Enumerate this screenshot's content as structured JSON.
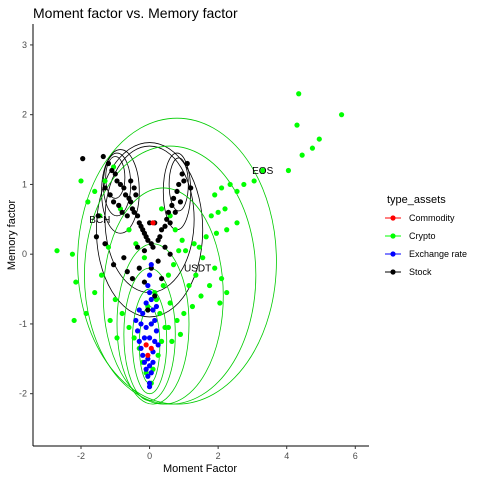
{
  "chart_data": {
    "type": "scatter",
    "title": "Moment factor vs. Memory factor",
    "xlabel": "Moment Factor",
    "ylabel": "Memory factor",
    "xlim": [
      -3.4,
      6.4
    ],
    "ylim": [
      -2.75,
      3.3
    ],
    "xticks": [
      -2,
      0,
      2,
      4,
      6
    ],
    "yticks": [
      -2,
      -1,
      0,
      1,
      2,
      3
    ],
    "grid": false,
    "legend": {
      "title": "type_assets",
      "position": "right",
      "entries": [
        "Commodity",
        "Crypto",
        "Exchange rate",
        "Stock"
      ]
    },
    "colors": {
      "Commodity": "#ff0000",
      "Crypto": "#00ff00",
      "Exchange rate": "#0000ff",
      "Stock": "#000000",
      "density_stock": "#000000",
      "density_crypto": "#00cc00"
    },
    "annotations": [
      {
        "text": "EOS",
        "x": 3.3,
        "y": 1.15
      },
      {
        "text": "BCH",
        "x": -1.45,
        "y": 0.45
      },
      {
        "text": "USDT",
        "x": 1.4,
        "y": -0.25
      }
    ],
    "series": [
      {
        "name": "Crypto",
        "points": [
          [
            4.35,
            2.3
          ],
          [
            5.6,
            2.0
          ],
          [
            4.95,
            1.65
          ],
          [
            4.3,
            1.85
          ],
          [
            4.75,
            1.52
          ],
          [
            4.45,
            1.42
          ],
          [
            4.05,
            1.2
          ],
          [
            3.3,
            1.2
          ],
          [
            3.05,
            1.05
          ],
          [
            2.75,
            1.0
          ],
          [
            2.55,
            0.9
          ],
          [
            2.35,
            1.0
          ],
          [
            2.1,
            0.95
          ],
          [
            1.9,
            0.85
          ],
          [
            2.2,
            0.65
          ],
          [
            2.0,
            0.6
          ],
          [
            1.8,
            0.55
          ],
          [
            2.55,
            0.45
          ],
          [
            2.25,
            0.35
          ],
          [
            1.95,
            0.3
          ],
          [
            1.65,
            0.25
          ],
          [
            1.45,
            0.1
          ],
          [
            1.3,
            0.15
          ],
          [
            1.05,
            0.05
          ],
          [
            1.55,
            -0.05
          ],
          [
            1.9,
            -0.2
          ],
          [
            2.1,
            -0.35
          ],
          [
            1.75,
            -0.45
          ],
          [
            1.5,
            -0.6
          ],
          [
            1.25,
            -0.75
          ],
          [
            1.0,
            -0.85
          ],
          [
            0.8,
            -0.95
          ],
          [
            0.55,
            -1.05
          ],
          [
            0.9,
            -1.15
          ],
          [
            0.65,
            -1.25
          ],
          [
            2.05,
            -0.7
          ],
          [
            2.25,
            -0.55
          ],
          [
            -2.7,
            0.05
          ],
          [
            -2.25,
            0.0
          ],
          [
            -2.15,
            -0.4
          ],
          [
            -2.2,
            -0.95
          ],
          [
            -1.85,
            -0.85
          ],
          [
            -1.6,
            -0.55
          ],
          [
            -1.4,
            -0.3
          ],
          [
            -1.2,
            0.1
          ],
          [
            -1.45,
            0.55
          ],
          [
            -1.8,
            0.75
          ],
          [
            -2.0,
            1.05
          ],
          [
            -1.6,
            0.9
          ],
          [
            -1.3,
            1.05
          ],
          [
            -1.05,
            1.25
          ],
          [
            -0.85,
            0.65
          ],
          [
            -0.6,
            0.35
          ],
          [
            -0.4,
            0.15
          ],
          [
            -0.15,
            -0.05
          ],
          [
            -1.0,
            -0.65
          ],
          [
            -0.8,
            -0.85
          ],
          [
            -0.6,
            -1.05
          ],
          [
            -0.45,
            -1.2
          ],
          [
            -0.3,
            -1.35
          ],
          [
            -0.2,
            -1.55
          ],
          [
            -0.1,
            -1.7
          ],
          [
            0.1,
            -1.65
          ],
          [
            0.25,
            -1.45
          ],
          [
            0.35,
            -1.25
          ],
          [
            0.45,
            -1.05
          ],
          [
            0.3,
            -0.85
          ],
          [
            0.2,
            -0.65
          ],
          [
            0.4,
            -0.45
          ],
          [
            0.55,
            -0.3
          ],
          [
            0.7,
            -0.15
          ],
          [
            0.85,
            0.05
          ],
          [
            0.95,
            0.2
          ],
          [
            -0.95,
            -1.2
          ],
          [
            -1.15,
            -0.95
          ],
          [
            0.05,
            -1.85
          ],
          [
            0.05,
            -1.0
          ],
          [
            -0.05,
            -0.75
          ],
          [
            0.15,
            -0.55
          ],
          [
            0.6,
            -0.7
          ],
          [
            1.15,
            -0.45
          ],
          [
            1.35,
            -0.3
          ],
          [
            0.75,
            0.35
          ],
          [
            0.6,
            0.55
          ],
          [
            0.35,
            0.65
          ]
        ]
      },
      {
        "name": "Stock",
        "points": [
          [
            -1.95,
            1.37
          ],
          [
            -1.35,
            1.4
          ],
          [
            -1.2,
            1.3
          ],
          [
            -1.1,
            1.2
          ],
          [
            -1.0,
            1.15
          ],
          [
            -0.95,
            1.05
          ],
          [
            -0.85,
            1.0
          ],
          [
            -0.75,
            0.95
          ],
          [
            -0.7,
            0.85
          ],
          [
            -0.6,
            0.8
          ],
          [
            -0.55,
            0.75
          ],
          [
            -0.5,
            0.65
          ],
          [
            -0.45,
            0.6
          ],
          [
            -0.35,
            0.55
          ],
          [
            -0.3,
            0.45
          ],
          [
            -0.25,
            0.4
          ],
          [
            -0.2,
            0.35
          ],
          [
            -0.15,
            0.3
          ],
          [
            -0.1,
            0.25
          ],
          [
            -0.05,
            0.2
          ],
          [
            0.05,
            0.15
          ],
          [
            0.1,
            0.1
          ],
          [
            -1.3,
            0.95
          ],
          [
            -1.15,
            0.85
          ],
          [
            -1.05,
            0.75
          ],
          [
            -0.9,
            0.7
          ],
          [
            -0.8,
            0.6
          ],
          [
            -0.65,
            0.55
          ],
          [
            -1.5,
            0.55
          ],
          [
            -1.55,
            0.25
          ],
          [
            -1.3,
            0.15
          ],
          [
            -1.05,
            -0.15
          ],
          [
            -0.55,
            1.05
          ],
          [
            -0.45,
            0.95
          ],
          [
            -0.4,
            0.85
          ],
          [
            1.1,
            1.3
          ],
          [
            0.95,
            1.15
          ],
          [
            0.85,
            1.0
          ],
          [
            0.8,
            0.9
          ],
          [
            0.7,
            0.8
          ],
          [
            0.65,
            0.7
          ],
          [
            0.55,
            0.6
          ],
          [
            0.5,
            0.5
          ],
          [
            0.45,
            0.4
          ],
          [
            0.35,
            0.35
          ],
          [
            0.3,
            0.25
          ],
          [
            0.25,
            0.2
          ],
          [
            0.6,
            0.45
          ],
          [
            0.75,
            0.6
          ],
          [
            0.9,
            0.75
          ],
          [
            1.2,
            0.95
          ],
          [
            1.0,
            1.05
          ],
          [
            -0.75,
            -0.05
          ],
          [
            -0.65,
            -0.25
          ],
          [
            -0.5,
            -0.35
          ],
          [
            -0.3,
            -0.2
          ],
          [
            -0.15,
            -0.4
          ],
          [
            0.05,
            -0.2
          ],
          [
            0.25,
            -0.1
          ],
          [
            0.35,
            -0.35
          ],
          [
            0.15,
            -0.6
          ],
          [
            -0.05,
            -0.8
          ],
          [
            0.15,
            0.45
          ],
          [
            0.0,
            0.45
          ],
          [
            -0.15,
            0.05
          ],
          [
            -0.35,
            0.1
          ],
          [
            0.45,
            0.1
          ],
          [
            0.6,
            0.0
          ]
        ]
      },
      {
        "name": "Exchange rate",
        "points": [
          [
            -0.4,
            -0.95
          ],
          [
            -0.35,
            -1.1
          ],
          [
            -0.3,
            -1.25
          ],
          [
            -0.25,
            -1.35
          ],
          [
            -0.2,
            -1.45
          ],
          [
            -0.15,
            -1.55
          ],
          [
            -0.1,
            -1.65
          ],
          [
            -0.05,
            -1.75
          ],
          [
            0.0,
            -1.85
          ],
          [
            0.05,
            -1.7
          ],
          [
            0.1,
            -1.55
          ],
          [
            0.1,
            -1.4
          ],
          [
            0.15,
            -1.25
          ],
          [
            0.2,
            -1.1
          ],
          [
            0.15,
            -0.95
          ],
          [
            0.1,
            -0.8
          ],
          [
            0.05,
            -0.65
          ],
          [
            0.0,
            -0.55
          ],
          [
            -0.05,
            -0.45
          ],
          [
            -0.1,
            -0.7
          ],
          [
            -0.2,
            -0.85
          ],
          [
            -0.25,
            -1.0
          ],
          [
            0.25,
            -1.3
          ],
          [
            0.0,
            -1.2
          ],
          [
            -0.1,
            -1.05
          ],
          [
            0.05,
            -1.0
          ],
          [
            0.0,
            -0.3
          ],
          [
            0.05,
            -0.15
          ],
          [
            -0.05,
            -1.5
          ],
          [
            0.0,
            -1.9
          ],
          [
            0.0,
            -1.6
          ],
          [
            -0.15,
            -1.2
          ],
          [
            0.2,
            -0.75
          ],
          [
            -0.3,
            -0.8
          ]
        ]
      },
      {
        "name": "Commodity",
        "points": [
          [
            0.1,
            0.45
          ],
          [
            -0.05,
            -1.45
          ],
          [
            0.05,
            -1.35
          ],
          [
            -0.1,
            -1.3
          ]
        ]
      }
    ],
    "density_contours": [
      {
        "group": "Stock",
        "levels": [
          {
            "cx": -0.85,
            "cy": 0.9,
            "rx": 0.55,
            "ry": 0.6
          },
          {
            "cx": -0.95,
            "cy": 1.0,
            "rx": 0.4,
            "ry": 0.45
          },
          {
            "cx": -1.0,
            "cy": 1.1,
            "rx": 0.28,
            "ry": 0.3
          },
          {
            "cx": 0.8,
            "cy": 0.9,
            "rx": 0.4,
            "ry": 0.55
          },
          {
            "cx": 0.85,
            "cy": 1.0,
            "rx": 0.28,
            "ry": 0.38
          },
          {
            "cx": 0.0,
            "cy": 0.5,
            "rx": 1.3,
            "ry": 1.05
          },
          {
            "cx": 0.0,
            "cy": 0.35,
            "rx": 1.55,
            "ry": 1.25
          }
        ]
      },
      {
        "group": "Crypto",
        "levels": [
          {
            "cx": 0.0,
            "cy": -1.3,
            "rx": 0.3,
            "ry": 0.55
          },
          {
            "cx": 0.0,
            "cy": -1.25,
            "rx": 0.5,
            "ry": 0.75
          },
          {
            "cx": 0.0,
            "cy": -1.15,
            "rx": 0.75,
            "ry": 0.95
          },
          {
            "cx": 0.1,
            "cy": -1.0,
            "rx": 1.05,
            "ry": 1.15
          },
          {
            "cx": 0.4,
            "cy": -0.6,
            "rx": 1.75,
            "ry": 1.55
          },
          {
            "cx": 0.6,
            "cy": -0.3,
            "rx": 2.5,
            "ry": 1.85
          },
          {
            "cx": 0.8,
            "cy": -0.1,
            "rx": 2.9,
            "ry": 2.05
          }
        ]
      }
    ]
  }
}
